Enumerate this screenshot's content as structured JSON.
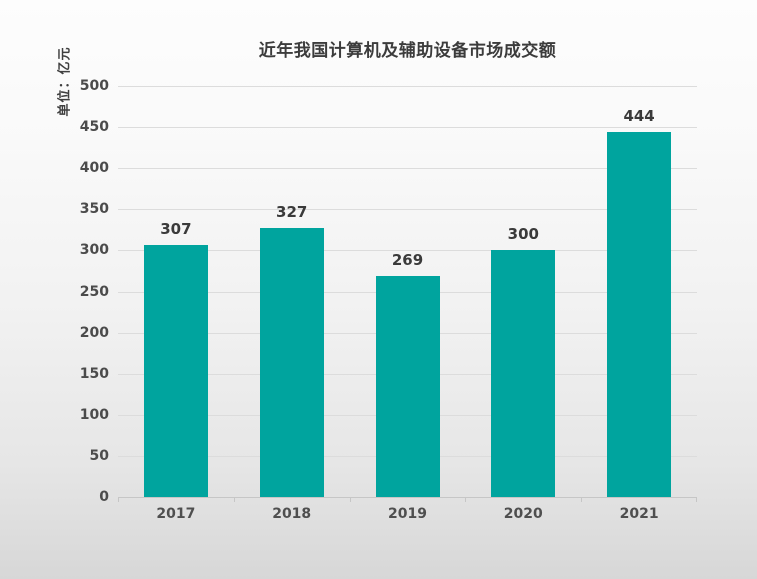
{
  "chart_data": {
    "type": "bar",
    "title": "近年我国计算机及辅助设备市场成交额",
    "unit_label": "单位：亿元",
    "categories": [
      "2017",
      "2018",
      "2019",
      "2020",
      "2021"
    ],
    "values": [
      307,
      327,
      269,
      300,
      444
    ],
    "xlabel": "",
    "ylabel": "单位：亿元",
    "ylim": [
      0,
      500
    ],
    "ytick_step": 50,
    "yticks": [
      0,
      50,
      100,
      150,
      200,
      250,
      300,
      350,
      400,
      450,
      500
    ],
    "grid": true,
    "legend": false,
    "value_labels_shown": true,
    "colors": {
      "bar": "#00A49E",
      "title_text": "#3c3c3c",
      "value_label_text": "#3a3a3a",
      "axis_text": "#4b4b4b",
      "gridline": "#dcdcdc",
      "axis_line": "#c6c6c6",
      "background_top": "#fdfdfd",
      "background_bottom": "#d7d7d7"
    }
  }
}
